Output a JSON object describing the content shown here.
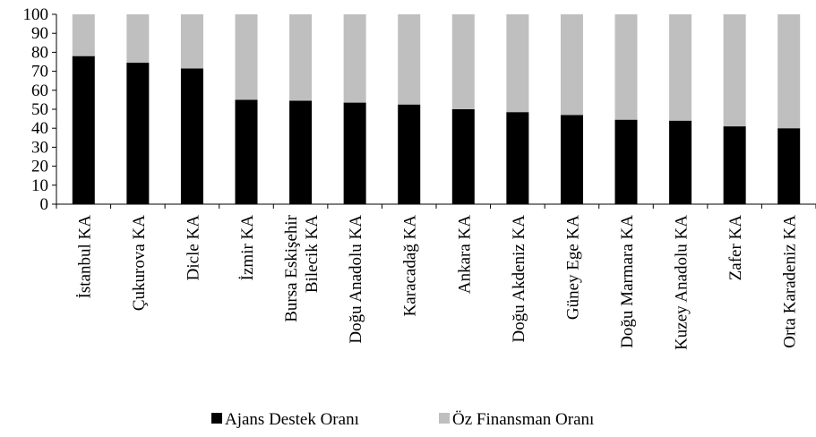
{
  "chart_data": {
    "type": "bar",
    "stacked": true,
    "title": "",
    "xlabel": "",
    "ylabel": "",
    "ylim": [
      0,
      100
    ],
    "yticks": [
      0,
      10,
      20,
      30,
      40,
      50,
      60,
      70,
      80,
      90,
      100
    ],
    "grid": false,
    "legend_position": "bottom",
    "categories": [
      [
        "İstanbul KA"
      ],
      [
        "Çukurova KA"
      ],
      [
        "Dicle KA"
      ],
      [
        "İzmir KA"
      ],
      [
        "Bursa Eskişehir",
        "Bilecik KA"
      ],
      [
        "Doğu Anadolu KA"
      ],
      [
        "Karacadağ KA"
      ],
      [
        "Ankara KA"
      ],
      [
        "Doğu Akdeniz KA"
      ],
      [
        "Güney Ege KA"
      ],
      [
        "Doğu Marmara KA"
      ],
      [
        "Kuzey Anadolu KA"
      ],
      [
        "Zafer KA"
      ],
      [
        "Orta Karadeniz KA"
      ]
    ],
    "series": [
      {
        "name": "Ajans Destek Oranı",
        "color": "#000000",
        "values": [
          78,
          74.5,
          71.5,
          55,
          54.5,
          53.5,
          52.5,
          50,
          48.5,
          47,
          44.5,
          44,
          41,
          40
        ]
      },
      {
        "name": "Öz Finansman Oranı",
        "color": "#bfbfbf",
        "values": [
          22,
          25.5,
          28.5,
          45,
          45.5,
          46.5,
          47.5,
          50,
          51.5,
          53,
          55.5,
          56,
          59,
          60
        ]
      }
    ]
  }
}
